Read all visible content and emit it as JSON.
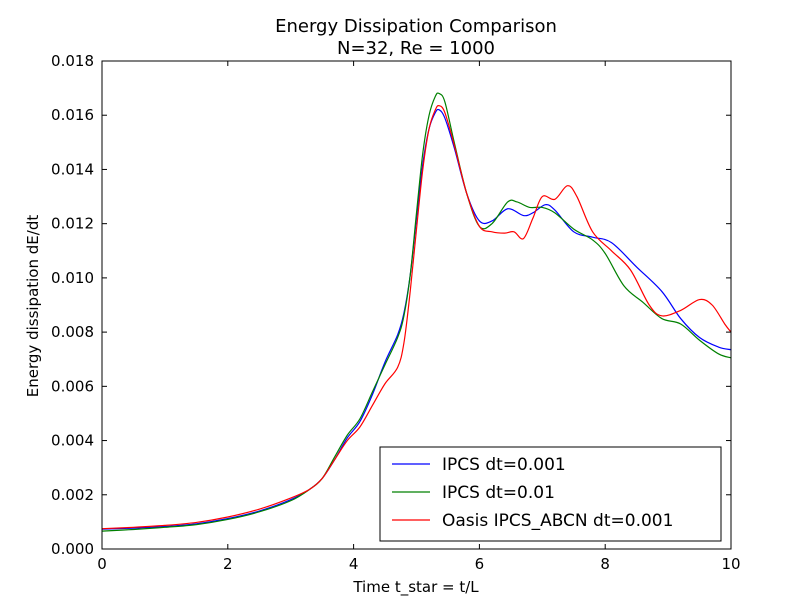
{
  "chart_data": {
    "type": "line",
    "title": "Energy Dissipation Comparison",
    "subtitle": "N=32, Re = 1000",
    "xlabel": "Time t_star = t/L",
    "ylabel": "Energy dissipation dE/dt",
    "xlim": [
      0,
      10
    ],
    "ylim": [
      0,
      0.018
    ],
    "xticks": [
      0,
      2,
      4,
      6,
      8,
      10
    ],
    "xtick_labels": [
      "0",
      "2",
      "4",
      "6",
      "8",
      "10"
    ],
    "yticks": [
      0,
      0.002,
      0.004,
      0.006,
      0.008,
      0.01,
      0.012,
      0.014,
      0.016,
      0.018
    ],
    "ytick_labels": [
      "0.000",
      "0.002",
      "0.004",
      "0.006",
      "0.008",
      "0.010",
      "0.012",
      "0.014",
      "0.016",
      "0.018"
    ],
    "grid": false,
    "legend_position": "lower-right",
    "series": [
      {
        "name": "IPCS dt=0.001",
        "color": "#0000ff",
        "points": [
          [
            0,
            0.00073
          ],
          [
            0.5,
            0.00077
          ],
          [
            1.0,
            0.00083
          ],
          [
            1.5,
            0.00093
          ],
          [
            2.0,
            0.00112
          ],
          [
            2.5,
            0.0014
          ],
          [
            3.0,
            0.00182
          ],
          [
            3.3,
            0.0022
          ],
          [
            3.5,
            0.0026
          ],
          [
            3.7,
            0.0033
          ],
          [
            3.9,
            0.0041
          ],
          [
            4.1,
            0.0047
          ],
          [
            4.3,
            0.0057
          ],
          [
            4.5,
            0.0069
          ],
          [
            4.7,
            0.0079
          ],
          [
            4.8,
            0.0087
          ],
          [
            4.9,
            0.0101
          ],
          [
            5.0,
            0.0122
          ],
          [
            5.1,
            0.0142
          ],
          [
            5.2,
            0.0155
          ],
          [
            5.3,
            0.0161
          ],
          [
            5.36,
            0.0162
          ],
          [
            5.45,
            0.0159
          ],
          [
            5.6,
            0.0148
          ],
          [
            5.8,
            0.0131
          ],
          [
            6.0,
            0.0121
          ],
          [
            6.2,
            0.0121
          ],
          [
            6.45,
            0.01255
          ],
          [
            6.7,
            0.0123
          ],
          [
            6.85,
            0.0124
          ],
          [
            7.05,
            0.0127
          ],
          [
            7.2,
            0.0125
          ],
          [
            7.5,
            0.0117
          ],
          [
            7.8,
            0.0115
          ],
          [
            8.1,
            0.0113
          ],
          [
            8.5,
            0.0104
          ],
          [
            8.9,
            0.0095
          ],
          [
            9.2,
            0.0085
          ],
          [
            9.5,
            0.0078
          ],
          [
            9.8,
            0.00745
          ],
          [
            10.0,
            0.00735
          ]
        ]
      },
      {
        "name": "IPCS dt=0.01",
        "color": "#008000",
        "points": [
          [
            0,
            0.00066
          ],
          [
            0.5,
            0.00072
          ],
          [
            1.0,
            0.0008
          ],
          [
            1.5,
            0.0009
          ],
          [
            2.0,
            0.00109
          ],
          [
            2.5,
            0.00137
          ],
          [
            3.0,
            0.00178
          ],
          [
            3.3,
            0.0022
          ],
          [
            3.5,
            0.0026
          ],
          [
            3.7,
            0.0034
          ],
          [
            3.9,
            0.0042
          ],
          [
            4.1,
            0.0048
          ],
          [
            4.3,
            0.0058
          ],
          [
            4.5,
            0.0068
          ],
          [
            4.7,
            0.0078
          ],
          [
            4.8,
            0.0086
          ],
          [
            4.9,
            0.0101
          ],
          [
            5.0,
            0.0124
          ],
          [
            5.1,
            0.0146
          ],
          [
            5.2,
            0.016
          ],
          [
            5.3,
            0.0167
          ],
          [
            5.36,
            0.0168
          ],
          [
            5.45,
            0.0165
          ],
          [
            5.6,
            0.015
          ],
          [
            5.8,
            0.0131
          ],
          [
            6.0,
            0.0119
          ],
          [
            6.2,
            0.012
          ],
          [
            6.45,
            0.0128
          ],
          [
            6.6,
            0.0128
          ],
          [
            6.8,
            0.0126
          ],
          [
            7.0,
            0.0126
          ],
          [
            7.2,
            0.0124
          ],
          [
            7.5,
            0.0118
          ],
          [
            7.8,
            0.0114
          ],
          [
            8.0,
            0.0109
          ],
          [
            8.3,
            0.0097
          ],
          [
            8.6,
            0.0091
          ],
          [
            8.9,
            0.0085
          ],
          [
            9.2,
            0.0083
          ],
          [
            9.5,
            0.0077
          ],
          [
            9.8,
            0.0072
          ],
          [
            10.0,
            0.00705
          ]
        ]
      },
      {
        "name": "Oasis IPCS_ABCN dt=0.001",
        "color": "#ff0000",
        "points": [
          [
            0,
            0.00075
          ],
          [
            0.5,
            0.0008
          ],
          [
            1.0,
            0.00087
          ],
          [
            1.5,
            0.00098
          ],
          [
            2.0,
            0.00118
          ],
          [
            2.5,
            0.00147
          ],
          [
            3.0,
            0.00188
          ],
          [
            3.3,
            0.0022
          ],
          [
            3.5,
            0.0026
          ],
          [
            3.7,
            0.0033
          ],
          [
            3.9,
            0.004
          ],
          [
            4.1,
            0.0045
          ],
          [
            4.3,
            0.0053
          ],
          [
            4.5,
            0.0061
          ],
          [
            4.7,
            0.0067
          ],
          [
            4.8,
            0.0076
          ],
          [
            4.9,
            0.0095
          ],
          [
            5.0,
            0.0118
          ],
          [
            5.1,
            0.014
          ],
          [
            5.2,
            0.0155
          ],
          [
            5.3,
            0.0162
          ],
          [
            5.36,
            0.01635
          ],
          [
            5.45,
            0.0161
          ],
          [
            5.6,
            0.0149
          ],
          [
            5.8,
            0.0131
          ],
          [
            6.0,
            0.0119
          ],
          [
            6.2,
            0.0117
          ],
          [
            6.4,
            0.01165
          ],
          [
            6.55,
            0.0117
          ],
          [
            6.7,
            0.01145
          ],
          [
            6.85,
            0.0122
          ],
          [
            7.0,
            0.013
          ],
          [
            7.2,
            0.0129
          ],
          [
            7.4,
            0.0134
          ],
          [
            7.55,
            0.013
          ],
          [
            7.8,
            0.0117
          ],
          [
            8.1,
            0.011
          ],
          [
            8.4,
            0.0103
          ],
          [
            8.7,
            0.009
          ],
          [
            8.9,
            0.0086
          ],
          [
            9.2,
            0.0088
          ],
          [
            9.5,
            0.0092
          ],
          [
            9.7,
            0.009
          ],
          [
            9.9,
            0.0083
          ],
          [
            10.0,
            0.008
          ]
        ]
      }
    ]
  }
}
